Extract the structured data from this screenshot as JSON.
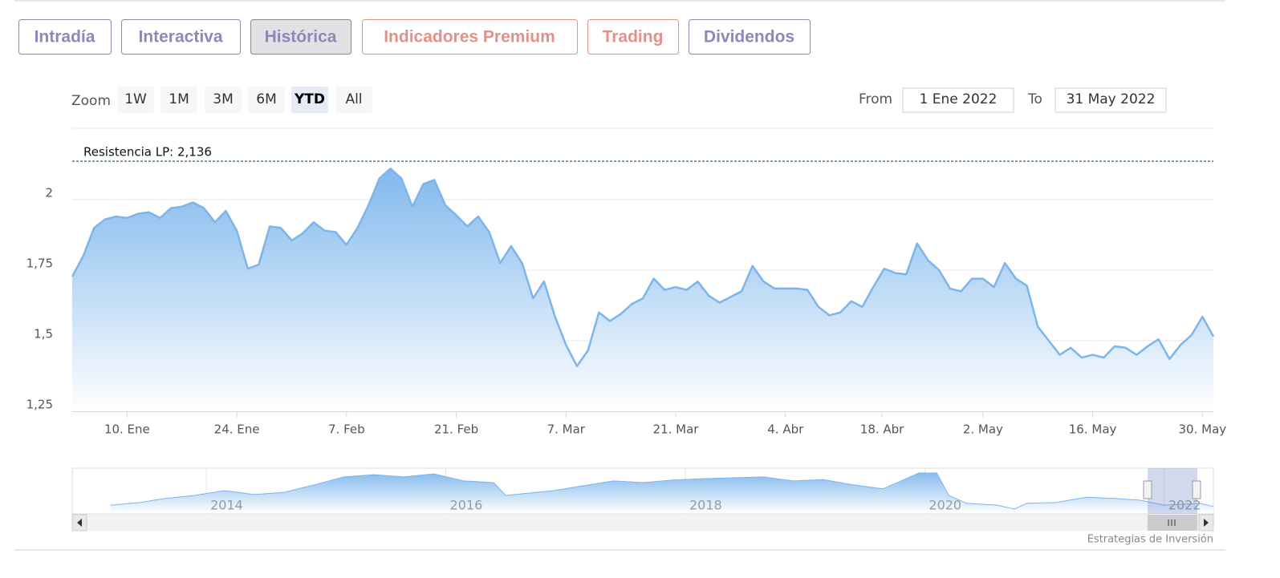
{
  "tabs": [
    {
      "label": "Intradía",
      "color": "#8e88b8"
    },
    {
      "label": "Interactiva",
      "color": "#8e88b8"
    },
    {
      "label": "Histórica",
      "color": "#8e88b8"
    },
    {
      "label": "Indicadores Premium",
      "color": "#e0928a"
    },
    {
      "label": "Trading",
      "color": "#e0928a"
    },
    {
      "label": "Dividendos",
      "color": "#8e88b8"
    }
  ],
  "active_tab": 2,
  "zoom": {
    "label": "Zoom",
    "buttons": [
      "1W",
      "1M",
      "3M",
      "6M",
      "YTD",
      "All"
    ],
    "selected": 4
  },
  "range": {
    "from_label": "From",
    "from": "1 Ene 2022",
    "to_label": "To",
    "to": "31 May 2022"
  },
  "chart_data": {
    "type": "area",
    "color": "#7cb5ec",
    "x": [
      "2022-01-03",
      "2022-01-04",
      "2022-01-05",
      "2022-01-06",
      "2022-01-07",
      "2022-01-10",
      "2022-01-11",
      "2022-01-12",
      "2022-01-13",
      "2022-01-14",
      "2022-01-17",
      "2022-01-18",
      "2022-01-19",
      "2022-01-20",
      "2022-01-21",
      "2022-01-24",
      "2022-01-25",
      "2022-01-26",
      "2022-01-27",
      "2022-01-28",
      "2022-01-31",
      "2022-02-01",
      "2022-02-02",
      "2022-02-03",
      "2022-02-04",
      "2022-02-07",
      "2022-02-08",
      "2022-02-09",
      "2022-02-10",
      "2022-02-11",
      "2022-02-14",
      "2022-02-15",
      "2022-02-16",
      "2022-02-17",
      "2022-02-18",
      "2022-02-21",
      "2022-02-22",
      "2022-02-23",
      "2022-02-24",
      "2022-02-25",
      "2022-02-28",
      "2022-03-01",
      "2022-03-02",
      "2022-03-03",
      "2022-03-04",
      "2022-03-07",
      "2022-03-08",
      "2022-03-09",
      "2022-03-10",
      "2022-03-11",
      "2022-03-14",
      "2022-03-15",
      "2022-03-16",
      "2022-03-17",
      "2022-03-18",
      "2022-03-21",
      "2022-03-22",
      "2022-03-23",
      "2022-03-24",
      "2022-03-25",
      "2022-03-28",
      "2022-03-29",
      "2022-03-30",
      "2022-03-31",
      "2022-04-01",
      "2022-04-04",
      "2022-04-05",
      "2022-04-06",
      "2022-04-07",
      "2022-04-08",
      "2022-04-11",
      "2022-04-12",
      "2022-04-13",
      "2022-04-14",
      "2022-04-19",
      "2022-04-20",
      "2022-04-21",
      "2022-04-22",
      "2022-04-25",
      "2022-04-26",
      "2022-04-27",
      "2022-04-28",
      "2022-04-29",
      "2022-05-02",
      "2022-05-03",
      "2022-05-04",
      "2022-05-05",
      "2022-05-06",
      "2022-05-09",
      "2022-05-10",
      "2022-05-11",
      "2022-05-12",
      "2022-05-13",
      "2022-05-16",
      "2022-05-17",
      "2022-05-18",
      "2022-05-19",
      "2022-05-20",
      "2022-05-23",
      "2022-05-24",
      "2022-05-25",
      "2022-05-26",
      "2022-05-27",
      "2022-05-30",
      "2022-05-31"
    ],
    "values": [
      1.727,
      1.8,
      1.9,
      1.93,
      1.94,
      1.935,
      1.95,
      1.955,
      1.935,
      1.97,
      1.975,
      1.99,
      1.97,
      1.92,
      1.96,
      1.89,
      1.755,
      1.77,
      1.905,
      1.9,
      1.855,
      1.88,
      1.92,
      1.89,
      1.885,
      1.84,
      1.9,
      1.98,
      2.075,
      2.11,
      2.075,
      1.975,
      2.055,
      2.07,
      1.98,
      1.945,
      1.905,
      1.94,
      1.885,
      1.775,
      1.835,
      1.775,
      1.65,
      1.71,
      1.585,
      1.485,
      1.41,
      1.465,
      1.6,
      1.57,
      1.595,
      1.63,
      1.65,
      1.72,
      1.68,
      1.69,
      1.68,
      1.71,
      1.66,
      1.635,
      1.655,
      1.675,
      1.765,
      1.71,
      1.685,
      1.685,
      1.685,
      1.68,
      1.62,
      1.59,
      1.6,
      1.64,
      1.62,
      1.69,
      1.755,
      1.74,
      1.735,
      1.845,
      1.785,
      1.75,
      1.685,
      1.675,
      1.72,
      1.72,
      1.69,
      1.775,
      1.72,
      1.695,
      1.55,
      1.5,
      1.45,
      1.475,
      1.44,
      1.45,
      1.44,
      1.48,
      1.475,
      1.45,
      1.48,
      1.505,
      1.435,
      1.485,
      1.52,
      1.585,
      1.515
    ],
    "ylim": [
      1.25,
      2.25
    ],
    "yticks": [
      {
        "value": 1.25,
        "label": "1,25"
      },
      {
        "value": 1.5,
        "label": "1,5"
      },
      {
        "value": 1.75,
        "label": "1,75"
      },
      2
    ],
    "xticks": [
      {
        "value": "2022-01-10",
        "label": "10. Ene"
      },
      {
        "value": "2022-01-24",
        "label": "24. Ene"
      },
      {
        "value": "2022-02-07",
        "label": "7. Feb"
      },
      {
        "value": "2022-02-21",
        "label": "21. Feb"
      },
      {
        "value": "2022-03-07",
        "label": "7. Mar"
      },
      {
        "value": "2022-03-21",
        "label": "21. Mar"
      },
      {
        "value": "2022-04-04",
        "label": "4. Abr"
      },
      {
        "value": "2022-04-18",
        "label": "18. Abr"
      },
      {
        "value": "2022-05-02",
        "label": "2. May"
      },
      {
        "value": "2022-05-16",
        "label": "16. May"
      },
      {
        "value": "2022-05-30",
        "label": "30. May"
      }
    ],
    "annotation": {
      "label": "Resistencia LP: 2,136",
      "value": 2.136,
      "color": "#2a7a2a"
    },
    "grid": true,
    "navigator": {
      "type": "area",
      "x": [
        2013.2,
        2013.45,
        2013.65,
        2013.9,
        2014.15,
        2014.4,
        2014.65,
        2014.9,
        2015.15,
        2015.4,
        2015.65,
        2015.9,
        2016.15,
        2016.4,
        2016.5,
        2016.65,
        2016.9,
        2017.15,
        2017.4,
        2017.65,
        2017.9,
        2018.15,
        2018.4,
        2018.65,
        2018.9,
        2019.15,
        2019.4,
        2019.65,
        2019.8,
        2019.95,
        2020.1,
        2020.2,
        2020.35,
        2020.6,
        2020.75,
        2020.85,
        2021.1,
        2021.35,
        2021.6,
        2021.8,
        2022.0,
        2022.3,
        2022.41
      ],
      "values": [
        1.38,
        1.44,
        1.53,
        1.6,
        1.71,
        1.62,
        1.67,
        1.84,
        2.02,
        2.07,
        2.02,
        2.09,
        1.93,
        1.89,
        1.6,
        1.64,
        1.71,
        1.82,
        1.93,
        1.89,
        1.95,
        1.98,
        2.0,
        2.02,
        1.93,
        1.96,
        1.84,
        1.75,
        1.93,
        2.11,
        2.11,
        1.6,
        1.42,
        1.38,
        1.29,
        1.42,
        1.44,
        1.56,
        1.53,
        1.49,
        1.38,
        1.42,
        1.35
      ],
      "xlim": [
        2012.88,
        2022.41
      ],
      "ylim": [
        1.2,
        2.2
      ],
      "xticks": [
        2014,
        2016,
        2018,
        2020,
        2022
      ]
    }
  },
  "credit": "Estrategias de Inversión"
}
